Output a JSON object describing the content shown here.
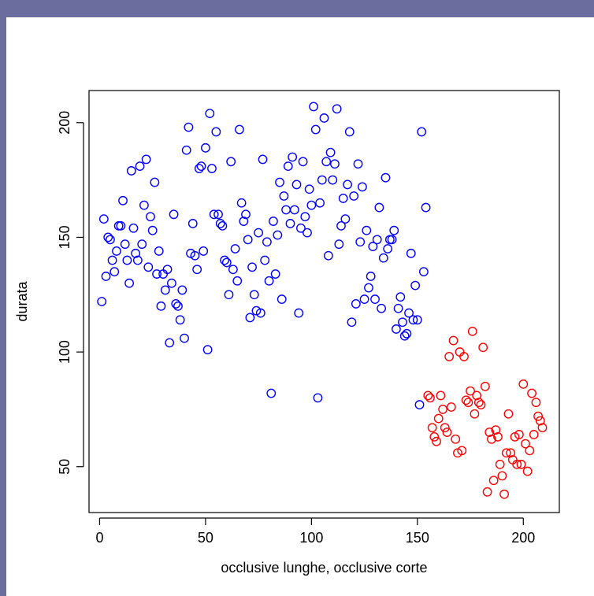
{
  "chart_data": {
    "type": "scatter",
    "title": "",
    "xlabel": "occlusive lunghe, occlusive corte",
    "ylabel": "durata",
    "xlim": [
      -5,
      217
    ],
    "ylim": [
      30,
      214
    ],
    "xticks": [
      0,
      50,
      100,
      150,
      200
    ],
    "yticks": [
      50,
      100,
      150,
      200
    ],
    "xtick_labels": [
      "0",
      "50",
      "100",
      "150",
      "200"
    ],
    "ytick_labels": [
      "50",
      "100",
      "150",
      "200"
    ],
    "grid": false,
    "legend": null,
    "series": [
      {
        "color": "#0000ff",
        "points": [
          [
            1,
            122
          ],
          [
            2,
            158
          ],
          [
            3,
            133
          ],
          [
            4,
            150
          ],
          [
            5,
            149
          ],
          [
            6,
            140
          ],
          [
            7,
            135
          ],
          [
            8,
            144
          ],
          [
            9,
            155
          ],
          [
            10,
            155
          ],
          [
            11,
            166
          ],
          [
            12,
            147
          ],
          [
            13,
            140
          ],
          [
            14,
            130
          ],
          [
            15,
            179
          ],
          [
            16,
            154
          ],
          [
            17,
            143
          ],
          [
            18,
            140
          ],
          [
            19,
            181
          ],
          [
            20,
            147
          ],
          [
            21,
            164
          ],
          [
            22,
            184
          ],
          [
            23,
            137
          ],
          [
            24,
            159
          ],
          [
            25,
            153
          ],
          [
            26,
            174
          ],
          [
            27,
            134
          ],
          [
            28,
            144
          ],
          [
            29,
            120
          ],
          [
            30,
            134
          ],
          [
            31,
            127
          ],
          [
            32,
            136
          ],
          [
            33,
            104
          ],
          [
            34,
            130
          ],
          [
            35,
            160
          ],
          [
            36,
            121
          ],
          [
            37,
            120
          ],
          [
            38,
            114
          ],
          [
            39,
            127
          ],
          [
            40,
            106
          ],
          [
            41,
            188
          ],
          [
            42,
            198
          ],
          [
            43,
            143
          ],
          [
            44,
            156
          ],
          [
            45,
            142
          ],
          [
            46,
            136
          ],
          [
            47,
            180
          ],
          [
            48,
            181
          ],
          [
            49,
            144
          ],
          [
            50,
            189
          ],
          [
            51,
            101
          ],
          [
            52,
            204
          ],
          [
            53,
            180
          ],
          [
            54,
            160
          ],
          [
            55,
            196
          ],
          [
            56,
            160
          ],
          [
            57,
            156
          ],
          [
            58,
            155
          ],
          [
            59,
            140
          ],
          [
            60,
            139
          ],
          [
            61,
            125
          ],
          [
            62,
            183
          ],
          [
            63,
            136
          ],
          [
            64,
            145
          ],
          [
            65,
            131
          ],
          [
            66,
            197
          ],
          [
            67,
            165
          ],
          [
            68,
            157
          ],
          [
            69,
            160
          ],
          [
            70,
            149
          ],
          [
            71,
            115
          ],
          [
            72,
            137
          ],
          [
            73,
            125
          ],
          [
            74,
            118
          ],
          [
            75,
            152
          ],
          [
            76,
            117
          ],
          [
            77,
            184
          ],
          [
            78,
            140
          ],
          [
            79,
            148
          ],
          [
            80,
            131
          ],
          [
            81,
            82
          ],
          [
            82,
            157
          ],
          [
            83,
            134
          ],
          [
            84,
            151
          ],
          [
            85,
            174
          ],
          [
            86,
            123
          ],
          [
            87,
            168
          ],
          [
            88,
            162
          ],
          [
            89,
            181
          ],
          [
            90,
            156
          ],
          [
            91,
            185
          ],
          [
            92,
            162
          ],
          [
            93,
            173
          ],
          [
            94,
            117
          ],
          [
            95,
            154
          ],
          [
            96,
            183
          ],
          [
            97,
            159
          ],
          [
            98,
            152
          ],
          [
            99,
            171
          ],
          [
            100,
            164
          ],
          [
            101,
            207
          ],
          [
            102,
            197
          ],
          [
            103,
            80
          ],
          [
            104,
            165
          ],
          [
            105,
            175
          ],
          [
            106,
            202
          ],
          [
            107,
            183
          ],
          [
            108,
            142
          ],
          [
            109,
            187
          ],
          [
            110,
            175
          ],
          [
            111,
            182
          ],
          [
            112,
            206
          ],
          [
            113,
            147
          ],
          [
            114,
            155
          ],
          [
            115,
            167
          ],
          [
            116,
            158
          ],
          [
            117,
            173
          ],
          [
            118,
            196
          ],
          [
            119,
            113
          ],
          [
            120,
            168
          ],
          [
            121,
            121
          ],
          [
            122,
            182
          ],
          [
            123,
            148
          ],
          [
            124,
            172
          ],
          [
            125,
            123
          ],
          [
            126,
            153
          ],
          [
            127,
            128
          ],
          [
            128,
            133
          ],
          [
            129,
            146
          ],
          [
            130,
            123
          ],
          [
            131,
            149
          ],
          [
            132,
            163
          ],
          [
            133,
            119
          ],
          [
            134,
            141
          ],
          [
            135,
            176
          ],
          [
            136,
            145
          ],
          [
            137,
            149
          ],
          [
            138,
            149
          ],
          [
            139,
            153
          ],
          [
            140,
            110
          ],
          [
            141,
            119
          ],
          [
            142,
            124
          ],
          [
            143,
            113
          ],
          [
            144,
            107
          ],
          [
            145,
            108
          ],
          [
            146,
            117
          ],
          [
            147,
            143
          ],
          [
            148,
            114
          ],
          [
            149,
            129
          ],
          [
            150,
            114
          ],
          [
            151,
            77
          ],
          [
            152,
            196
          ],
          [
            153,
            135
          ],
          [
            154,
            163
          ]
        ]
      },
      {
        "color": "#ff0000",
        "points": [
          [
            155,
            81
          ],
          [
            156,
            80
          ],
          [
            157,
            67
          ],
          [
            158,
            63
          ],
          [
            159,
            61
          ],
          [
            160,
            71
          ],
          [
            161,
            81
          ],
          [
            162,
            75
          ],
          [
            163,
            67
          ],
          [
            164,
            65
          ],
          [
            165,
            98
          ],
          [
            166,
            76
          ],
          [
            167,
            105
          ],
          [
            168,
            62
          ],
          [
            169,
            56
          ],
          [
            170,
            100
          ],
          [
            171,
            57
          ],
          [
            172,
            98
          ],
          [
            173,
            79
          ],
          [
            174,
            78
          ],
          [
            175,
            83
          ],
          [
            176,
            109
          ],
          [
            177,
            73
          ],
          [
            178,
            81
          ],
          [
            179,
            78
          ],
          [
            180,
            77
          ],
          [
            181,
            102
          ],
          [
            182,
            85
          ],
          [
            183,
            39
          ],
          [
            184,
            65
          ],
          [
            185,
            62
          ],
          [
            186,
            44
          ],
          [
            187,
            66
          ],
          [
            188,
            63
          ],
          [
            189,
            51
          ],
          [
            190,
            46
          ],
          [
            191,
            38
          ],
          [
            192,
            56
          ],
          [
            193,
            73
          ],
          [
            194,
            56
          ],
          [
            195,
            53
          ],
          [
            196,
            63
          ],
          [
            197,
            51
          ],
          [
            198,
            64
          ],
          [
            199,
            51
          ],
          [
            200,
            86
          ],
          [
            201,
            60
          ],
          [
            202,
            48
          ],
          [
            203,
            57
          ],
          [
            204,
            82
          ],
          [
            205,
            64
          ],
          [
            206,
            78
          ],
          [
            207,
            72
          ],
          [
            208,
            70
          ],
          [
            209,
            67
          ]
        ]
      }
    ]
  }
}
